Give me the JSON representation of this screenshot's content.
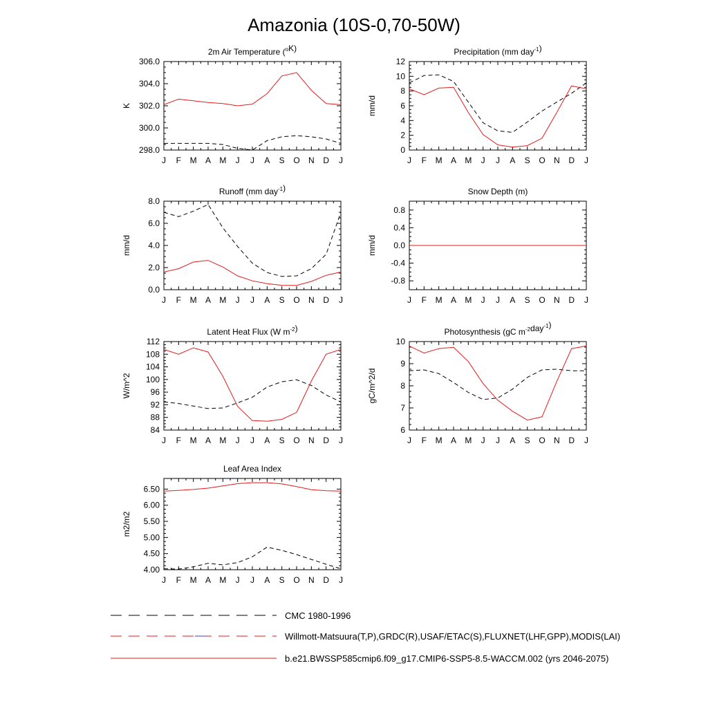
{
  "title": "Amazonia (10S-0,70-50W)",
  "colors": {
    "model": "#e41a1c",
    "obs": "#000000",
    "obs_dash2": "#3b3bd6"
  },
  "months": [
    "J",
    "F",
    "M",
    "A",
    "M",
    "J",
    "J",
    "A",
    "S",
    "O",
    "N",
    "D",
    "J"
  ],
  "chart_data": [
    {
      "type": "line",
      "title": "2m Air Temperature (°K)",
      "ylabel": "K",
      "ylim": [
        298.0,
        306.0
      ],
      "yticks": [
        298.0,
        300.0,
        302.0,
        304.0,
        306.0
      ],
      "ytick_labels": [
        "298.0",
        "300.0",
        "302.0",
        "304.0",
        "306.0"
      ],
      "series": [
        {
          "name": "model",
          "style": "solid",
          "values": [
            302.1,
            302.6,
            302.45,
            302.3,
            302.2,
            302.0,
            302.15,
            303.1,
            304.7,
            305.0,
            303.4,
            302.2,
            302.1
          ]
        },
        {
          "name": "CMC 1980-1996",
          "style": "dashed",
          "values": [
            298.6,
            298.6,
            298.6,
            298.6,
            298.5,
            298.15,
            298.0,
            298.85,
            299.2,
            299.3,
            299.2,
            299.0,
            298.6
          ]
        }
      ]
    },
    {
      "type": "line",
      "title": "Precipitation (mm day⁻¹)",
      "ylabel": "mm/d",
      "ylim": [
        0,
        12
      ],
      "yticks": [
        0,
        2,
        4,
        6,
        8,
        10,
        12
      ],
      "ytick_labels": [
        "0",
        "2",
        "4",
        "6",
        "8",
        "10",
        "12"
      ],
      "series": [
        {
          "name": "model",
          "style": "solid",
          "values": [
            8.3,
            7.5,
            8.4,
            8.5,
            5.1,
            2.1,
            0.7,
            0.4,
            0.6,
            1.6,
            5.1,
            8.7,
            8.3
          ]
        },
        {
          "name": "CMC 1980-1996",
          "style": "dashed",
          "values": [
            9.1,
            10.1,
            10.2,
            9.3,
            6.5,
            3.7,
            2.6,
            2.4,
            3.8,
            5.3,
            6.5,
            7.7,
            9.1
          ]
        }
      ]
    },
    {
      "type": "line",
      "title": "Runoff (mm day⁻¹)",
      "ylabel": "mm/d",
      "ylim": [
        0,
        8
      ],
      "yticks": [
        0,
        2,
        4,
        6,
        8
      ],
      "ytick_labels": [
        "0.0",
        "2.0",
        "4.0",
        "6.0",
        "8.0"
      ],
      "series": [
        {
          "name": "model",
          "style": "solid",
          "values": [
            1.6,
            1.9,
            2.5,
            2.65,
            2.05,
            1.25,
            0.8,
            0.55,
            0.4,
            0.38,
            0.75,
            1.3,
            1.6
          ]
        },
        {
          "name": "CMC 1980-1996",
          "style": "dashed",
          "values": [
            7.0,
            6.6,
            7.1,
            7.7,
            5.6,
            3.9,
            2.4,
            1.55,
            1.2,
            1.25,
            1.9,
            3.2,
            7.0
          ]
        }
      ]
    },
    {
      "type": "line",
      "title": "Snow Depth (m)",
      "ylabel": "mm/d",
      "ylim": [
        -1.0,
        1.0
      ],
      "yticks": [
        -0.8,
        -0.4,
        0.0,
        0.4,
        0.8
      ],
      "ytick_labels": [
        "-0.8",
        "-0.4",
        "0.0",
        "0.4",
        "0.8"
      ],
      "series": [
        {
          "name": "model",
          "style": "solid",
          "values": [
            0,
            0,
            0,
            0,
            0,
            0,
            0,
            0,
            0,
            0,
            0,
            0,
            0
          ]
        },
        {
          "name": "CMC 1980-1996",
          "style": "dashed",
          "values": [
            0,
            0,
            0,
            0,
            0,
            0,
            0,
            0,
            0,
            0,
            0,
            0,
            0
          ]
        }
      ]
    },
    {
      "type": "line",
      "title": "Latent Heat Flux (W m⁻²)",
      "ylabel": "W/m^2",
      "ylim": [
        84,
        112
      ],
      "yticks": [
        84,
        88,
        92,
        96,
        100,
        104,
        108,
        112
      ],
      "ytick_labels": [
        "84",
        "88",
        "92",
        "96",
        "100",
        "104",
        "108",
        "112"
      ],
      "series": [
        {
          "name": "model",
          "style": "solid",
          "values": [
            109.5,
            108.0,
            110.0,
            108.7,
            101.0,
            91.5,
            87.0,
            86.8,
            87.4,
            89.6,
            99.5,
            108.0,
            109.5
          ]
        },
        {
          "name": "CMC 1980-1996",
          "style": "dashed",
          "values": [
            92.9,
            92.4,
            91.6,
            90.8,
            91.0,
            92.6,
            94.4,
            97.6,
            99.3,
            99.9,
            98.1,
            95.1,
            92.9
          ]
        }
      ]
    },
    {
      "type": "line",
      "title": "Photosynthesis (gC m⁻²day⁻¹)",
      "ylabel": "gC/m^2/d",
      "ylim": [
        6,
        10
      ],
      "yticks": [
        6,
        7,
        8,
        9,
        10
      ],
      "ytick_labels": [
        "6",
        "7",
        "8",
        "9",
        "10"
      ],
      "series": [
        {
          "name": "model",
          "style": "solid",
          "values": [
            9.8,
            9.48,
            9.68,
            9.74,
            9.1,
            8.1,
            7.35,
            6.85,
            6.45,
            6.6,
            8.2,
            9.68,
            9.8
          ]
        },
        {
          "name": "CMC 1980-1996",
          "style": "dashed",
          "values": [
            8.68,
            8.72,
            8.55,
            8.15,
            7.7,
            7.38,
            7.45,
            7.85,
            8.38,
            8.72,
            8.75,
            8.68,
            8.68
          ]
        }
      ]
    },
    {
      "type": "line",
      "title": "Leaf Area Index",
      "ylabel": "m2/m2",
      "ylim": [
        4.0,
        6.83
      ],
      "yticks": [
        4.0,
        4.5,
        5.0,
        5.5,
        6.0,
        6.5
      ],
      "ytick_labels": [
        "4.00",
        "4.50",
        "5.00",
        "5.50",
        "6.00",
        "6.50"
      ],
      "series": [
        {
          "name": "model",
          "style": "solid",
          "values": [
            6.44,
            6.46,
            6.49,
            6.53,
            6.6,
            6.67,
            6.7,
            6.7,
            6.66,
            6.58,
            6.48,
            6.45,
            6.44
          ]
        },
        {
          "name": "CMC 1980-1996",
          "style": "dashed",
          "values": [
            4.03,
            4.02,
            4.09,
            4.2,
            4.15,
            4.22,
            4.4,
            4.7,
            4.6,
            4.47,
            4.32,
            4.17,
            4.03
          ]
        }
      ]
    }
  ],
  "legend": [
    {
      "label": "CMC 1980-1996",
      "style": "dashed-black"
    },
    {
      "label": "Willmott-Matsuura(T,P),GRDC(R),USAF/ETAC(S),FLUXNET(LHF,GPP),MODIS(LAI)",
      "style": "dashed-red-blue"
    },
    {
      "label": "b.e21.BWSSP585cmip6.f09_g17.CMIP6-SSP5-8.5-WACCM.002 (yrs 2046-2075)",
      "style": "solid-red"
    }
  ]
}
